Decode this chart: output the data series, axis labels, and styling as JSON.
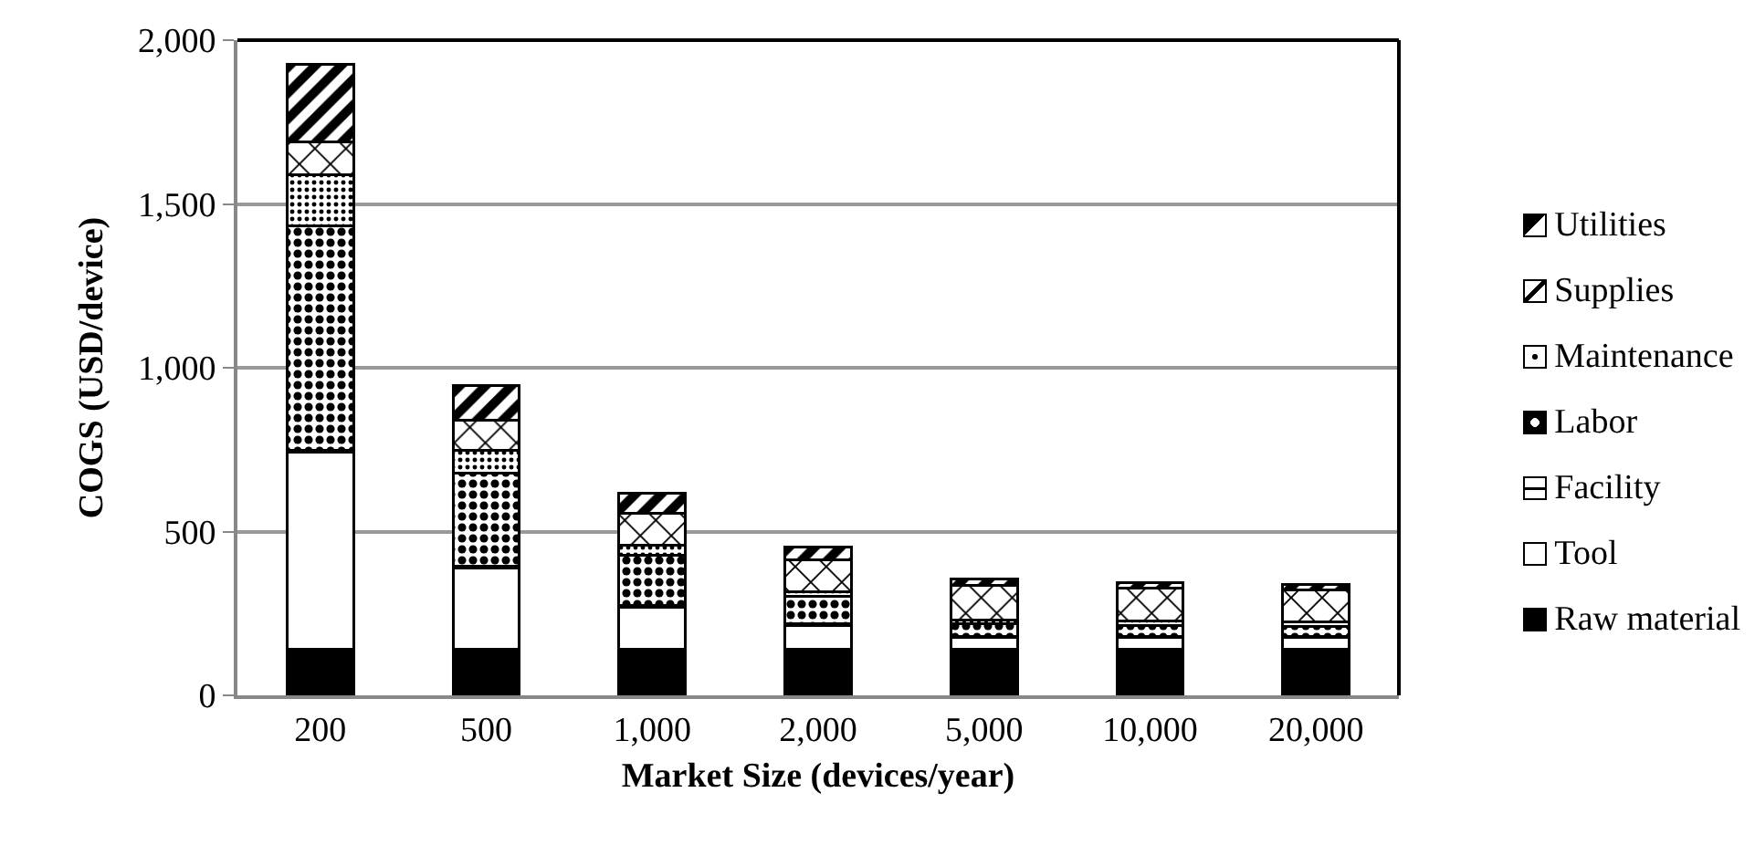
{
  "chart_data": {
    "type": "bar",
    "stacked": true,
    "xlabel": "Market Size (devices/year)",
    "ylabel": "COGS (USD/device)",
    "categories": [
      "200",
      "500",
      "1,000",
      "2,000",
      "5,000",
      "10,000",
      "20,000"
    ],
    "series": [
      {
        "name": "Raw material",
        "color": "#000000",
        "values": [
          140,
          140,
          140,
          140,
          140,
          140,
          140
        ]
      },
      {
        "name": "Tool",
        "color": "#ffffff",
        "values": [
          603,
          250,
          130,
          74,
          37,
          37,
          37
        ]
      },
      {
        "name": "Facility",
        "color": "#000000",
        "values": [
          5,
          4,
          4,
          4,
          4,
          4,
          4
        ]
      },
      {
        "name": "Labor",
        "color": "#000000",
        "values": [
          685,
          284,
          154,
          84,
          37,
          33,
          30
        ]
      },
      {
        "name": "Maintenance",
        "color": "#000000",
        "values": [
          157,
          70,
          31,
          15,
          11,
          14,
          13
        ]
      },
      {
        "name": "Supplies",
        "color": "#000000",
        "values": [
          100,
          92,
          98,
          98,
          106,
          98,
          98
        ]
      },
      {
        "name": "Utilities",
        "color": "#000000",
        "values": [
          236,
          106,
          61,
          37,
          19,
          18,
          17
        ]
      }
    ],
    "ylim": [
      0,
      2000
    ],
    "yticks": [
      {
        "value": 0,
        "label": "0"
      },
      {
        "value": 500,
        "label": "500"
      },
      {
        "value": 1000,
        "label": "1,000"
      },
      {
        "value": 1500,
        "label": "1,500"
      },
      {
        "value": 2000,
        "label": "2,000"
      }
    ],
    "grid": "y",
    "legend": "right"
  }
}
